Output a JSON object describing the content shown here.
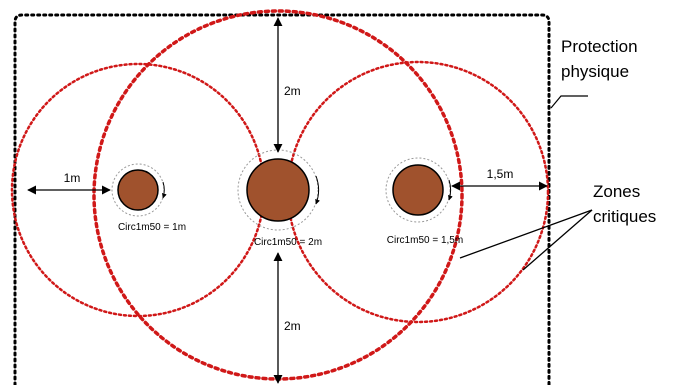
{
  "protection_label": [
    "Protection",
    "physique"
  ],
  "zones_label": [
    "Zones",
    "critiques"
  ],
  "dimensions": {
    "left": "1m",
    "top": "2m",
    "bottom": "2m",
    "right": "1,5m"
  },
  "trees": [
    {
      "caption": "Circ1m50 = 1m"
    },
    {
      "caption": "Circ1m50 = 2m"
    },
    {
      "caption": "Circ1m50 = 1,5m"
    }
  ],
  "colors": {
    "trunk_fill": "#a0522d",
    "critical_zone": "#d01818",
    "boundary": "#000000",
    "guide": "#999999"
  }
}
